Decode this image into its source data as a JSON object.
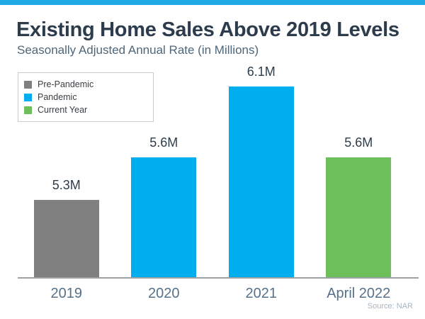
{
  "header": {
    "title": "Existing Home Sales Above 2019 Levels",
    "subtitle": "Seasonally Adjusted Annual Rate (in Millions)"
  },
  "footer": {
    "source": "Source: NAR"
  },
  "colors": {
    "top_strip": "#1FA9E5",
    "pre_pandemic": "#808080",
    "pandemic": "#00AEEF",
    "current_year": "#6CBF5A",
    "axis": "#9BA2A8"
  },
  "legend": {
    "items": [
      {
        "label": "Pre-Pandemic",
        "color": "#808080"
      },
      {
        "label": "Pandemic",
        "color": "#00AEEF"
      },
      {
        "label": "Current Year",
        "color": "#6CBF5A"
      }
    ]
  },
  "chart_data": {
    "type": "bar",
    "title": "Existing Home Sales Above 2019 Levels",
    "subtitle": "Seasonally Adjusted Annual Rate (in Millions)",
    "categories": [
      "2019",
      "2020",
      "2021",
      "April 2022"
    ],
    "values": [
      5.3,
      5.6,
      6.1,
      5.6
    ],
    "value_labels": [
      "5.3M",
      "5.6M",
      "6.1M",
      "5.6M"
    ],
    "bar_series": [
      "Pre-Pandemic",
      "Pandemic",
      "Pandemic",
      "Current Year"
    ],
    "bar_colors": [
      "#808080",
      "#00AEEF",
      "#00AEEF",
      "#6CBF5A"
    ],
    "xlabel": "",
    "ylabel": "",
    "ylim": [
      4.75,
      6.3
    ],
    "grid": false,
    "legend_position": "top-left",
    "legend_entries": [
      "Pre-Pandemic",
      "Pandemic",
      "Current Year"
    ],
    "source": "Source: NAR"
  }
}
